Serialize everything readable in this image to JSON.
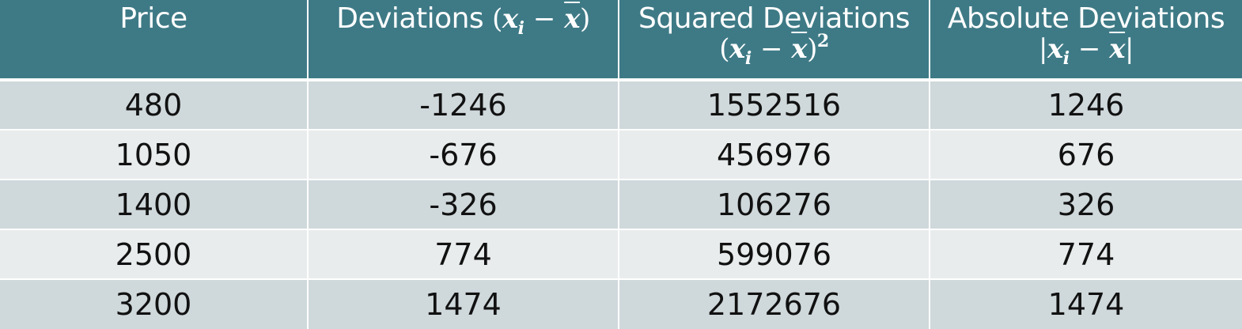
{
  "colors": {
    "header_bg": "#3e7a86",
    "header_text": "#ffffff",
    "row_odd": "#cfd8db",
    "row_even": "#e8ecec"
  },
  "header": {
    "price": "Price",
    "deviations": "Deviations",
    "squared": "Squared Deviations",
    "absolute": "Absolute Deviations",
    "formula_xi": "x",
    "formula_sub": "i",
    "formula_minus": "−",
    "formula_xbar": "x",
    "formula_sq": "2",
    "paren_open": "(",
    "paren_close": ")",
    "bar": "|"
  },
  "rows": [
    {
      "price": "480",
      "deviation": "-1246",
      "squared": "1552516",
      "absolute": "1246"
    },
    {
      "price": "1050",
      "deviation": "-676",
      "squared": "456976",
      "absolute": "676"
    },
    {
      "price": "1400",
      "deviation": "-326",
      "squared": "106276",
      "absolute": "326"
    },
    {
      "price": "2500",
      "deviation": "774",
      "squared": "599076",
      "absolute": "774"
    },
    {
      "price": "3200",
      "deviation": "1474",
      "squared": "2172676",
      "absolute": "1474"
    }
  ]
}
